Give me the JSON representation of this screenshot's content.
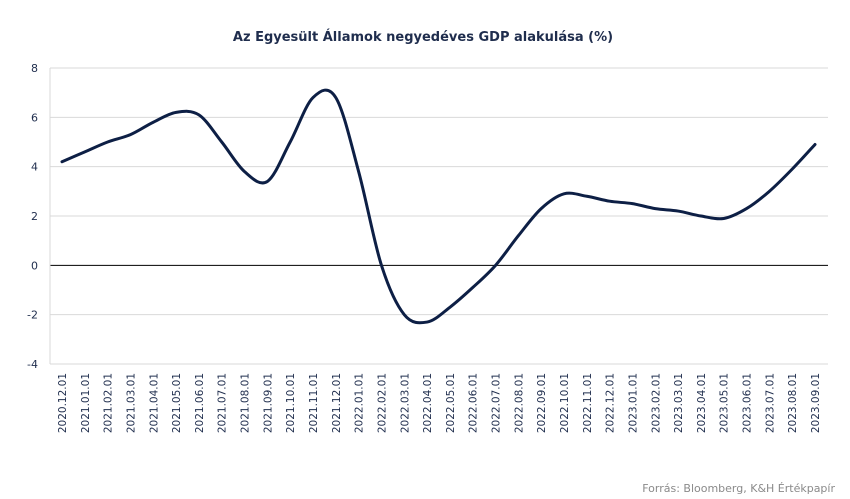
{
  "chart_data": {
    "type": "line",
    "title": "Az Egyesült  Államok negyedéves GDP alakulása (%)",
    "xlabel": "",
    "ylabel": "",
    "ylim": [
      -4,
      8
    ],
    "y_ticks": [
      8,
      6,
      4,
      2,
      0,
      -2,
      -4
    ],
    "grid": true,
    "legend": "none",
    "categories": [
      "2020.12.01",
      "2021.01.01",
      "2021.02.01",
      "2021.03.01",
      "2021.04.01",
      "2021.05.01",
      "2021.06.01",
      "2021.07.01",
      "2021.08.01",
      "2021.09.01",
      "2021.10.01",
      "2021.11.01",
      "2021.12.01",
      "2022.01.01",
      "2022.02.01",
      "2022.03.01",
      "2022.04.01",
      "2022.05.01",
      "2022.06.01",
      "2022.07.01",
      "2022.08.01",
      "2022.09.01",
      "2022.10.01",
      "2022.11.01",
      "2022.12.01",
      "2023.01.01",
      "2023.02.01",
      "2023.03.01",
      "2023.04.01",
      "2023.05.01",
      "2023.06.01",
      "2023.07.01",
      "2023.08.01",
      "2023.09.01"
    ],
    "series": [
      {
        "values": [
          4.2,
          4.6,
          5.0,
          5.3,
          5.8,
          6.2,
          6.1,
          5.0,
          3.8,
          3.4,
          5.0,
          6.8,
          6.8,
          3.8,
          0.0,
          -2.0,
          -2.3,
          -1.7,
          -0.9,
          0.0,
          1.2,
          2.3,
          2.9,
          2.8,
          2.6,
          2.5,
          2.3,
          2.2,
          2.0,
          1.9,
          2.3,
          3.0,
          3.9,
          4.9
        ]
      }
    ],
    "source": "Forrás: Bloomberg,  K&H Értékpapír",
    "colors": {
      "line": "#0d1f45",
      "grid": "#d9d9d9",
      "zero_line": "#000000",
      "text": "#1f2d4d"
    }
  }
}
